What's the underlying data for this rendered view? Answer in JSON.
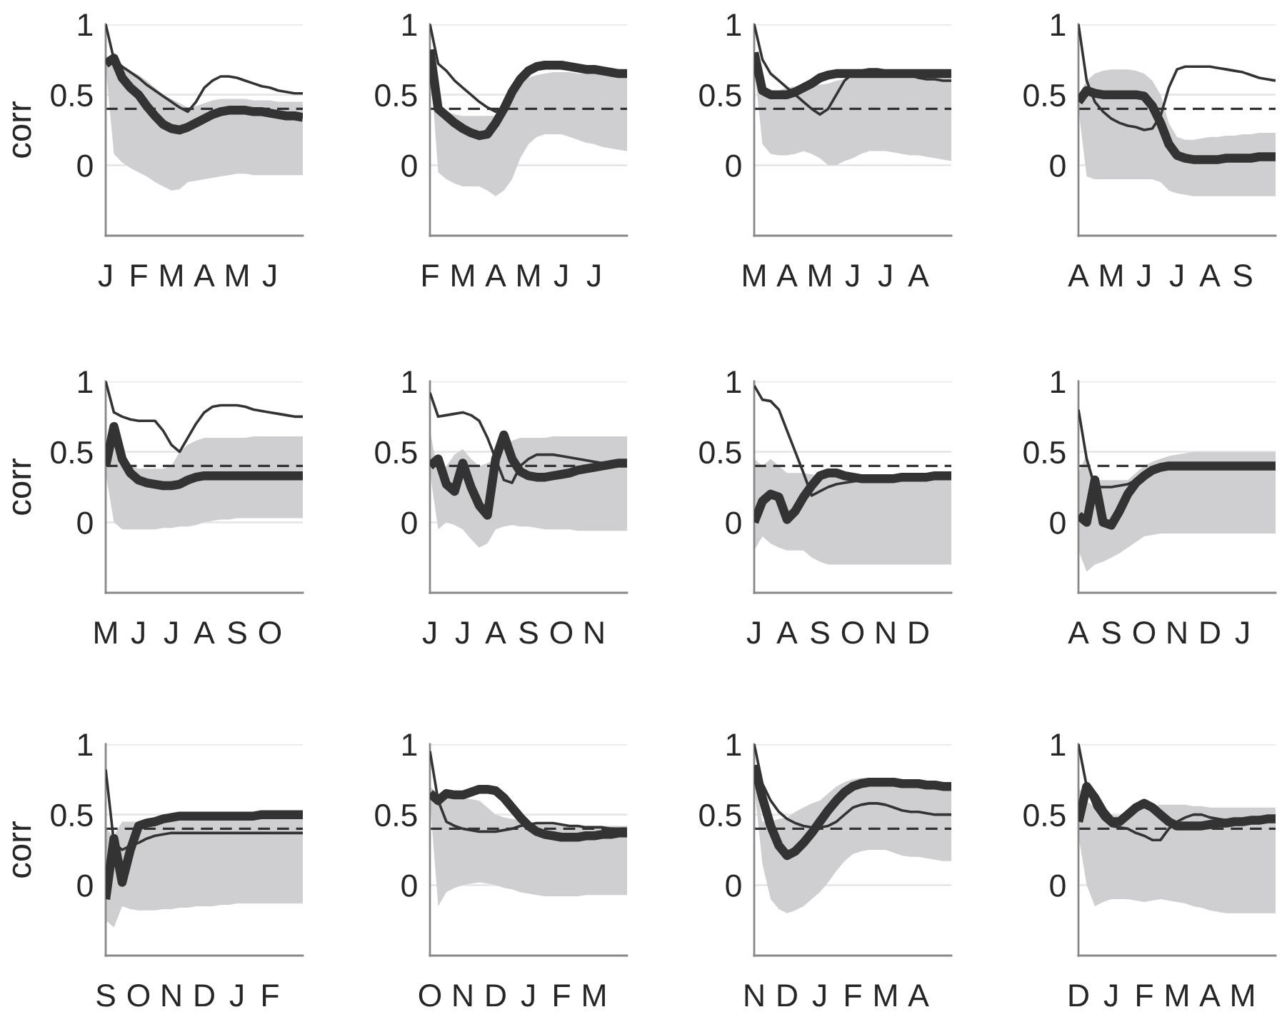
{
  "chart_data": [
    {
      "type": "line",
      "ylabel": "corr",
      "categories": [
        "J",
        null,
        null,
        null,
        "F",
        null,
        null,
        null,
        "M",
        null,
        null,
        null,
        "A",
        null,
        null,
        null,
        "M",
        null,
        null,
        null,
        "J",
        null,
        null,
        null,
        null
      ],
      "ylim": [
        -0.5,
        1
      ],
      "yticks": [
        0,
        0.5,
        1
      ],
      "grid": "y",
      "ref_lines": [
        {
          "axis": "y",
          "value": 0.4,
          "line_style": "dashed",
          "color": "#333333"
        }
      ],
      "series": [
        {
          "color": "#333333",
          "values": [
            0.72,
            0.76,
            0.62,
            0.55,
            0.5,
            0.42,
            0.35,
            0.29,
            0.26,
            0.25,
            0.27,
            0.3,
            0.33,
            0.36,
            0.38,
            0.39,
            0.39,
            0.39,
            0.38,
            0.38,
            0.37,
            0.36,
            0.35,
            0.35,
            0.34
          ],
          "lower": [
            0.7,
            0.08,
            0.02,
            -0.02,
            -0.05,
            -0.08,
            -0.12,
            -0.15,
            -0.18,
            -0.17,
            -0.12,
            -0.11,
            -0.1,
            -0.09,
            -0.08,
            -0.07,
            -0.06,
            -0.06,
            -0.07,
            -0.07,
            -0.07,
            -0.07,
            -0.07,
            -0.07,
            -0.07
          ],
          "upper": [
            0.78,
            0.75,
            0.7,
            0.67,
            0.64,
            0.6,
            0.55,
            0.5,
            0.47,
            0.44,
            0.41,
            0.42,
            0.44,
            0.46,
            0.47,
            0.47,
            0.47,
            0.47,
            0.46,
            0.46,
            0.46,
            0.45,
            0.45,
            0.45,
            0.45
          ]
        },
        {
          "color": "#333333",
          "values": [
            1,
            0.75,
            0.7,
            0.66,
            0.62,
            0.57,
            0.53,
            0.49,
            0.45,
            0.41,
            0.38,
            0.45,
            0.55,
            0.6,
            0.63,
            0.63,
            0.62,
            0.6,
            0.58,
            0.56,
            0.55,
            0.53,
            0.52,
            0.51,
            0.51
          ]
        }
      ]
    },
    {
      "type": "line",
      "categories": [
        "F",
        null,
        null,
        null,
        "M",
        null,
        null,
        null,
        "A",
        null,
        null,
        null,
        "M",
        null,
        null,
        null,
        "J",
        null,
        null,
        null,
        "J",
        null,
        null,
        null,
        null
      ],
      "ylim": [
        -0.5,
        1
      ],
      "yticks": [
        0,
        0.5,
        1
      ],
      "grid": "y",
      "ref_lines": [
        {
          "axis": "y",
          "value": 0.4,
          "line_style": "dashed",
          "color": "#333333"
        }
      ],
      "series": [
        {
          "color": "#333333",
          "values": [
            0.82,
            0.4,
            0.35,
            0.3,
            0.26,
            0.23,
            0.21,
            0.22,
            0.3,
            0.4,
            0.52,
            0.61,
            0.67,
            0.7,
            0.71,
            0.71,
            0.71,
            0.7,
            0.69,
            0.68,
            0.68,
            0.67,
            0.66,
            0.65,
            0.65
          ],
          "lower": [
            0.75,
            -0.05,
            -0.1,
            -0.13,
            -0.15,
            -0.15,
            -0.15,
            -0.18,
            -0.22,
            -0.18,
            -0.1,
            0.05,
            0.15,
            0.2,
            0.22,
            0.22,
            0.22,
            0.2,
            0.18,
            0.16,
            0.15,
            0.13,
            0.12,
            0.11,
            0.1
          ],
          "upper": [
            0.8,
            0.46,
            0.38,
            0.36,
            0.35,
            0.35,
            0.35,
            0.35,
            0.35,
            0.4,
            0.5,
            0.57,
            0.62,
            0.64,
            0.65,
            0.66,
            0.66,
            0.66,
            0.65,
            0.65,
            0.65,
            0.65,
            0.64,
            0.64,
            0.64
          ]
        },
        {
          "color": "#333333",
          "values": [
            1,
            0.72,
            0.67,
            0.6,
            0.55,
            0.5,
            0.45,
            0.41,
            0.38,
            0.4,
            0.52,
            0.61,
            0.67,
            0.7,
            0.71,
            0.71,
            0.71,
            0.7,
            0.69,
            0.68,
            0.68,
            0.67,
            0.66,
            0.65,
            0.65
          ]
        }
      ]
    },
    {
      "type": "line",
      "categories": [
        "M",
        null,
        null,
        null,
        "A",
        null,
        null,
        null,
        "M",
        null,
        null,
        null,
        "J",
        null,
        null,
        null,
        "J",
        null,
        null,
        null,
        "A",
        null,
        null,
        null,
        null
      ],
      "ylim": [
        -0.5,
        1
      ],
      "yticks": [
        0,
        0.5,
        1
      ],
      "grid": "y",
      "ref_lines": [
        {
          "axis": "y",
          "value": 0.4,
          "line_style": "dashed",
          "color": "#333333"
        }
      ],
      "series": [
        {
          "color": "#333333",
          "values": [
            0.8,
            0.53,
            0.5,
            0.5,
            0.5,
            0.52,
            0.55,
            0.58,
            0.62,
            0.64,
            0.65,
            0.65,
            0.65,
            0.65,
            0.65,
            0.65,
            0.65,
            0.65,
            0.65,
            0.65,
            0.65,
            0.65,
            0.65,
            0.65,
            0.65
          ],
          "lower": [
            0.7,
            0.15,
            0.08,
            0.07,
            0.07,
            0.08,
            0.1,
            0.08,
            0.05,
            0.0,
            0.0,
            0.03,
            0.05,
            0.08,
            0.1,
            0.1,
            0.1,
            0.09,
            0.08,
            0.07,
            0.07,
            0.06,
            0.05,
            0.04,
            0.03
          ],
          "upper": [
            0.8,
            0.53,
            0.52,
            0.53,
            0.55,
            0.56,
            0.57,
            0.57,
            0.57,
            0.58,
            0.6,
            0.61,
            0.62,
            0.63,
            0.64,
            0.65,
            0.65,
            0.65,
            0.65,
            0.65,
            0.65,
            0.65,
            0.65,
            0.65,
            0.65
          ]
        },
        {
          "color": "#333333",
          "values": [
            1,
            0.75,
            0.65,
            0.6,
            0.55,
            0.5,
            0.45,
            0.4,
            0.36,
            0.4,
            0.5,
            0.6,
            0.65,
            0.67,
            0.68,
            0.68,
            0.67,
            0.66,
            0.65,
            0.64,
            0.62,
            0.61,
            0.61,
            0.6,
            0.6
          ]
        }
      ]
    },
    {
      "type": "line",
      "categories": [
        "A",
        null,
        null,
        null,
        "M",
        null,
        null,
        null,
        "J",
        null,
        null,
        null,
        "J",
        null,
        null,
        null,
        "A",
        null,
        null,
        null,
        "S",
        null,
        null,
        null,
        null
      ],
      "ylim": [
        -0.5,
        1
      ],
      "yticks": [
        0,
        0.5,
        1
      ],
      "grid": "y",
      "ref_lines": [
        {
          "axis": "y",
          "value": 0.4,
          "line_style": "dashed",
          "color": "#333333"
        }
      ],
      "series": [
        {
          "color": "#333333",
          "values": [
            0.45,
            0.53,
            0.51,
            0.5,
            0.5,
            0.5,
            0.5,
            0.5,
            0.49,
            0.42,
            0.3,
            0.15,
            0.07,
            0.05,
            0.04,
            0.04,
            0.04,
            0.04,
            0.05,
            0.05,
            0.05,
            0.05,
            0.06,
            0.06,
            0.06
          ],
          "lower": [
            0.4,
            -0.08,
            -0.1,
            -0.1,
            -0.1,
            -0.1,
            -0.1,
            -0.1,
            -0.1,
            -0.1,
            -0.12,
            -0.18,
            -0.2,
            -0.21,
            -0.22,
            -0.22,
            -0.22,
            -0.22,
            -0.22,
            -0.22,
            -0.22,
            -0.22,
            -0.22,
            -0.22,
            -0.22
          ],
          "upper": [
            0.5,
            0.6,
            0.65,
            0.67,
            0.68,
            0.68,
            0.68,
            0.67,
            0.65,
            0.6,
            0.5,
            0.3,
            0.2,
            0.18,
            0.18,
            0.19,
            0.2,
            0.2,
            0.21,
            0.21,
            0.22,
            0.22,
            0.23,
            0.23,
            0.23
          ]
        },
        {
          "color": "#333333",
          "values": [
            1,
            0.6,
            0.45,
            0.38,
            0.33,
            0.3,
            0.28,
            0.27,
            0.25,
            0.26,
            0.35,
            0.55,
            0.68,
            0.7,
            0.7,
            0.7,
            0.7,
            0.69,
            0.68,
            0.67,
            0.66,
            0.64,
            0.62,
            0.61,
            0.6
          ]
        }
      ]
    },
    {
      "type": "line",
      "ylabel": "corr",
      "categories": [
        "M",
        null,
        null,
        null,
        "J",
        null,
        null,
        null,
        "J",
        null,
        null,
        null,
        "A",
        null,
        null,
        null,
        "S",
        null,
        null,
        null,
        "O",
        null,
        null,
        null,
        null
      ],
      "ylim": [
        -0.5,
        1
      ],
      "yticks": [
        0,
        0.5,
        1
      ],
      "grid": "y",
      "ref_lines": [
        {
          "axis": "y",
          "value": 0.4,
          "line_style": "dashed",
          "color": "#333333"
        }
      ],
      "series": [
        {
          "color": "#333333",
          "values": [
            0.4,
            0.68,
            0.45,
            0.35,
            0.3,
            0.28,
            0.27,
            0.26,
            0.26,
            0.27,
            0.3,
            0.32,
            0.33,
            0.33,
            0.33,
            0.33,
            0.33,
            0.33,
            0.33,
            0.33,
            0.33,
            0.33,
            0.33,
            0.33,
            0.33
          ],
          "lower": [
            0.35,
            0.0,
            -0.05,
            -0.05,
            -0.05,
            -0.05,
            -0.05,
            -0.04,
            -0.04,
            -0.03,
            -0.03,
            -0.02,
            0.0,
            0.01,
            0.02,
            0.02,
            0.03,
            0.03,
            0.03,
            0.03,
            0.03,
            0.03,
            0.03,
            0.03,
            0.03
          ],
          "upper": [
            0.45,
            0.55,
            0.42,
            0.4,
            0.38,
            0.38,
            0.38,
            0.38,
            0.4,
            0.5,
            0.55,
            0.58,
            0.6,
            0.6,
            0.6,
            0.6,
            0.6,
            0.6,
            0.61,
            0.61,
            0.61,
            0.61,
            0.61,
            0.61,
            0.61
          ]
        },
        {
          "color": "#333333",
          "values": [
            1,
            0.78,
            0.75,
            0.73,
            0.72,
            0.72,
            0.72,
            0.65,
            0.55,
            0.5,
            0.6,
            0.7,
            0.78,
            0.82,
            0.83,
            0.83,
            0.83,
            0.82,
            0.8,
            0.79,
            0.78,
            0.77,
            0.76,
            0.75,
            0.75
          ]
        }
      ]
    },
    {
      "type": "line",
      "categories": [
        "J",
        null,
        null,
        null,
        "J",
        null,
        null,
        null,
        "A",
        null,
        null,
        null,
        "S",
        null,
        null,
        null,
        "O",
        null,
        null,
        null,
        "N",
        null,
        null,
        null,
        null
      ],
      "ylim": [
        -0.5,
        1
      ],
      "yticks": [
        0,
        0.5,
        1
      ],
      "grid": "y",
      "ref_lines": [
        {
          "axis": "y",
          "value": 0.4,
          "line_style": "dashed",
          "color": "#333333"
        }
      ],
      "series": [
        {
          "color": "#333333",
          "values": [
            0.4,
            0.45,
            0.27,
            0.22,
            0.42,
            0.25,
            0.12,
            0.05,
            0.45,
            0.62,
            0.45,
            0.36,
            0.33,
            0.32,
            0.32,
            0.33,
            0.34,
            0.35,
            0.37,
            0.38,
            0.39,
            0.4,
            0.41,
            0.42,
            0.42
          ],
          "lower": [
            0.35,
            -0.05,
            0.0,
            -0.02,
            -0.05,
            -0.12,
            -0.18,
            -0.15,
            -0.05,
            -0.03,
            -0.02,
            -0.03,
            -0.03,
            -0.04,
            -0.05,
            -0.05,
            -0.05,
            -0.05,
            -0.06,
            -0.06,
            -0.06,
            -0.06,
            -0.06,
            -0.06,
            -0.06
          ],
          "upper": [
            0.65,
            0.35,
            0.4,
            0.48,
            0.52,
            0.45,
            0.4,
            0.42,
            0.45,
            0.55,
            0.58,
            0.6,
            0.6,
            0.6,
            0.6,
            0.61,
            0.61,
            0.61,
            0.61,
            0.61,
            0.61,
            0.61,
            0.61,
            0.61,
            0.61
          ]
        },
        {
          "color": "#333333",
          "values": [
            0.92,
            0.75,
            0.76,
            0.77,
            0.78,
            0.76,
            0.72,
            0.6,
            0.45,
            0.3,
            0.28,
            0.4,
            0.45,
            0.48,
            0.48,
            0.48,
            0.47,
            0.46,
            0.45,
            0.44,
            0.43,
            0.42,
            0.42,
            0.42,
            0.42
          ]
        }
      ]
    },
    {
      "type": "line",
      "categories": [
        "J",
        null,
        null,
        null,
        "A",
        null,
        null,
        null,
        "S",
        null,
        null,
        null,
        "O",
        null,
        null,
        null,
        "N",
        null,
        null,
        null,
        "D",
        null,
        null,
        null,
        null
      ],
      "ylim": [
        -0.5,
        1
      ],
      "yticks": [
        0,
        0.5,
        1
      ],
      "grid": "y",
      "ref_lines": [
        {
          "axis": "y",
          "value": 0.4,
          "line_style": "dashed",
          "color": "#333333"
        }
      ],
      "series": [
        {
          "color": "#333333",
          "values": [
            0.0,
            0.15,
            0.2,
            0.18,
            0.02,
            0.08,
            0.18,
            0.26,
            0.33,
            0.35,
            0.35,
            0.33,
            0.32,
            0.31,
            0.31,
            0.31,
            0.31,
            0.31,
            0.32,
            0.32,
            0.32,
            0.32,
            0.33,
            0.33,
            0.33
          ],
          "lower": [
            -0.2,
            -0.1,
            -0.15,
            -0.18,
            -0.2,
            -0.2,
            -0.2,
            -0.25,
            -0.28,
            -0.3,
            -0.3,
            -0.3,
            -0.3,
            -0.3,
            -0.3,
            -0.3,
            -0.3,
            -0.3,
            -0.3,
            -0.3,
            -0.3,
            -0.3,
            -0.3,
            -0.3,
            -0.3
          ],
          "upper": [
            0.45,
            0.4,
            0.45,
            0.4,
            0.35,
            0.35,
            0.35,
            0.34,
            0.33,
            0.32,
            0.32,
            0.31,
            0.31,
            0.31,
            0.31,
            0.31,
            0.32,
            0.32,
            0.32,
            0.32,
            0.33,
            0.33,
            0.33,
            0.33,
            0.33
          ]
        },
        {
          "color": "#333333",
          "values": [
            0.97,
            0.87,
            0.86,
            0.8,
            0.65,
            0.5,
            0.35,
            0.19,
            0.22,
            0.25,
            0.27,
            0.28,
            0.29,
            0.3,
            0.3,
            0.31,
            0.31,
            0.31,
            0.32,
            0.32,
            0.32,
            0.32,
            0.33,
            0.33,
            0.33
          ]
        }
      ]
    },
    {
      "type": "line",
      "categories": [
        "A",
        null,
        null,
        null,
        "S",
        null,
        null,
        null,
        "O",
        null,
        null,
        null,
        "N",
        null,
        null,
        null,
        "D",
        null,
        null,
        null,
        "J",
        null,
        null,
        null,
        null
      ],
      "ylim": [
        -0.5,
        1
      ],
      "yticks": [
        0,
        0.5,
        1
      ],
      "grid": "y",
      "ref_lines": [
        {
          "axis": "y",
          "value": 0.4,
          "line_style": "dashed",
          "color": "#333333"
        }
      ],
      "series": [
        {
          "color": "#333333",
          "values": [
            0.05,
            0.0,
            0.3,
            0.0,
            -0.02,
            0.08,
            0.2,
            0.28,
            0.33,
            0.37,
            0.39,
            0.4,
            0.4,
            0.4,
            0.4,
            0.4,
            0.4,
            0.4,
            0.4,
            0.4,
            0.4,
            0.4,
            0.4,
            0.4,
            0.4
          ],
          "lower": [
            -0.2,
            -0.35,
            -0.3,
            -0.28,
            -0.25,
            -0.22,
            -0.18,
            -0.14,
            -0.1,
            -0.09,
            -0.08,
            -0.08,
            -0.08,
            -0.08,
            -0.08,
            -0.08,
            -0.08,
            -0.08,
            -0.08,
            -0.08,
            -0.08,
            -0.08,
            -0.08,
            -0.08,
            -0.08
          ],
          "upper": [
            0.35,
            0.48,
            0.3,
            0.3,
            0.3,
            0.3,
            0.3,
            0.35,
            0.4,
            0.43,
            0.45,
            0.47,
            0.48,
            0.49,
            0.5,
            0.5,
            0.5,
            0.5,
            0.5,
            0.5,
            0.5,
            0.5,
            0.5,
            0.5,
            0.5
          ]
        },
        {
          "color": "#333333",
          "values": [
            0.8,
            0.45,
            0.25,
            0.25,
            0.25,
            0.26,
            0.27,
            0.3,
            0.33,
            0.37,
            0.39,
            0.4,
            0.4,
            0.4,
            0.4,
            0.4,
            0.4,
            0.4,
            0.4,
            0.4,
            0.4,
            0.4,
            0.4,
            0.4,
            0.4
          ]
        }
      ]
    },
    {
      "type": "line",
      "ylabel": "corr",
      "categories": [
        "S",
        null,
        null,
        null,
        "O",
        null,
        null,
        null,
        "N",
        null,
        null,
        null,
        "D",
        null,
        null,
        null,
        "J",
        null,
        null,
        null,
        "F",
        null,
        null,
        null,
        null
      ],
      "ylim": [
        -0.5,
        1
      ],
      "yticks": [
        0,
        0.5,
        1
      ],
      "grid": "y",
      "ref_lines": [
        {
          "axis": "y",
          "value": 0.4,
          "line_style": "dashed",
          "color": "#333333"
        }
      ],
      "series": [
        {
          "color": "#333333",
          "values": [
            -0.1,
            0.33,
            0.02,
            0.25,
            0.42,
            0.44,
            0.45,
            0.47,
            0.48,
            0.49,
            0.49,
            0.49,
            0.49,
            0.49,
            0.49,
            0.49,
            0.49,
            0.49,
            0.49,
            0.5,
            0.5,
            0.5,
            0.5,
            0.5,
            0.5
          ],
          "lower": [
            -0.25,
            -0.3,
            -0.15,
            -0.17,
            -0.18,
            -0.18,
            -0.18,
            -0.17,
            -0.17,
            -0.16,
            -0.16,
            -0.15,
            -0.15,
            -0.15,
            -0.14,
            -0.14,
            -0.13,
            -0.13,
            -0.13,
            -0.13,
            -0.13,
            -0.13,
            -0.13,
            -0.13,
            -0.13
          ],
          "upper": [
            0.4,
            0.35,
            0.45,
            0.45,
            0.45,
            0.46,
            0.47,
            0.47,
            0.47,
            0.47,
            0.47,
            0.47,
            0.47,
            0.47,
            0.47,
            0.47,
            0.47,
            0.47,
            0.47,
            0.47,
            0.47,
            0.47,
            0.47,
            0.47,
            0.47
          ]
        },
        {
          "color": "#333333",
          "values": [
            0.82,
            0.3,
            0.25,
            0.28,
            0.3,
            0.33,
            0.35,
            0.36,
            0.37,
            0.37,
            0.37,
            0.37,
            0.37,
            0.37,
            0.37,
            0.37,
            0.37,
            0.37,
            0.37,
            0.37,
            0.37,
            0.37,
            0.37,
            0.37,
            0.37
          ]
        }
      ]
    },
    {
      "type": "line",
      "categories": [
        "O",
        null,
        null,
        null,
        "N",
        null,
        null,
        null,
        "D",
        null,
        null,
        null,
        "J",
        null,
        null,
        null,
        "F",
        null,
        null,
        null,
        "M",
        null,
        null,
        null,
        null
      ],
      "ylim": [
        -0.5,
        1
      ],
      "yticks": [
        0,
        0.5,
        1
      ],
      "grid": "y",
      "ref_lines": [
        {
          "axis": "y",
          "value": 0.4,
          "line_style": "dashed",
          "color": "#333333"
        }
      ],
      "series": [
        {
          "color": "#333333",
          "values": [
            0.65,
            0.6,
            0.65,
            0.64,
            0.64,
            0.66,
            0.68,
            0.68,
            0.67,
            0.62,
            0.55,
            0.48,
            0.42,
            0.38,
            0.36,
            0.35,
            0.34,
            0.34,
            0.34,
            0.35,
            0.35,
            0.36,
            0.36,
            0.37,
            0.37
          ],
          "lower": [
            0.6,
            -0.15,
            -0.05,
            -0.02,
            0.0,
            0.01,
            0.02,
            0.01,
            0.0,
            -0.02,
            -0.03,
            -0.05,
            -0.06,
            -0.07,
            -0.08,
            -0.08,
            -0.08,
            -0.08,
            -0.08,
            -0.07,
            -0.07,
            -0.07,
            -0.07,
            -0.07,
            -0.07
          ],
          "upper": [
            0.7,
            0.65,
            0.66,
            0.64,
            0.62,
            0.61,
            0.6,
            0.55,
            0.5,
            0.48,
            0.47,
            0.46,
            0.45,
            0.44,
            0.43,
            0.43,
            0.42,
            0.42,
            0.42,
            0.42,
            0.42,
            0.42,
            0.42,
            0.42,
            0.42
          ]
        },
        {
          "color": "#333333",
          "values": [
            0.95,
            0.6,
            0.45,
            0.42,
            0.4,
            0.39,
            0.38,
            0.38,
            0.38,
            0.39,
            0.4,
            0.42,
            0.43,
            0.44,
            0.44,
            0.44,
            0.43,
            0.42,
            0.42,
            0.41,
            0.41,
            0.41,
            0.4,
            0.4,
            0.4
          ]
        }
      ]
    },
    {
      "type": "line",
      "categories": [
        "N",
        null,
        null,
        null,
        "D",
        null,
        null,
        null,
        "J",
        null,
        null,
        null,
        "F",
        null,
        null,
        null,
        "M",
        null,
        null,
        null,
        "A",
        null,
        null,
        null,
        null
      ],
      "ylim": [
        -0.5,
        1
      ],
      "yticks": [
        0,
        0.5,
        1
      ],
      "grid": "y",
      "ref_lines": [
        {
          "axis": "y",
          "value": 0.4,
          "line_style": "dashed",
          "color": "#333333"
        }
      ],
      "series": [
        {
          "color": "#333333",
          "values": [
            0.85,
            0.62,
            0.42,
            0.28,
            0.21,
            0.24,
            0.3,
            0.37,
            0.45,
            0.53,
            0.6,
            0.66,
            0.7,
            0.72,
            0.73,
            0.73,
            0.73,
            0.73,
            0.72,
            0.72,
            0.72,
            0.71,
            0.71,
            0.7,
            0.7
          ],
          "lower": [
            0.7,
            0.15,
            -0.1,
            -0.17,
            -0.2,
            -0.18,
            -0.15,
            -0.1,
            -0.05,
            0.02,
            0.1,
            0.17,
            0.22,
            0.24,
            0.25,
            0.25,
            0.25,
            0.23,
            0.21,
            0.2,
            0.2,
            0.19,
            0.18,
            0.17,
            0.17
          ],
          "upper": [
            0.8,
            0.45,
            0.45,
            0.47,
            0.48,
            0.52,
            0.55,
            0.58,
            0.6,
            0.65,
            0.7,
            0.73,
            0.75,
            0.76,
            0.76,
            0.76,
            0.75,
            0.74,
            0.73,
            0.72,
            0.72,
            0.71,
            0.71,
            0.7,
            0.7
          ]
        },
        {
          "color": "#333333",
          "values": [
            1,
            0.72,
            0.6,
            0.52,
            0.47,
            0.44,
            0.42,
            0.41,
            0.41,
            0.42,
            0.45,
            0.5,
            0.55,
            0.57,
            0.58,
            0.58,
            0.57,
            0.55,
            0.53,
            0.52,
            0.52,
            0.51,
            0.5,
            0.5,
            0.5
          ]
        }
      ]
    },
    {
      "type": "line",
      "categories": [
        "D",
        null,
        null,
        null,
        "J",
        null,
        null,
        null,
        "F",
        null,
        null,
        null,
        "M",
        null,
        null,
        null,
        "A",
        null,
        null,
        null,
        "M",
        null,
        null,
        null,
        null
      ],
      "ylim": [
        -0.5,
        1
      ],
      "yticks": [
        0,
        0.5,
        1
      ],
      "grid": "y",
      "ref_lines": [
        {
          "axis": "y",
          "value": 0.4,
          "line_style": "dashed",
          "color": "#333333"
        }
      ],
      "series": [
        {
          "color": "#333333",
          "values": [
            0.45,
            0.7,
            0.62,
            0.52,
            0.45,
            0.45,
            0.5,
            0.55,
            0.58,
            0.55,
            0.5,
            0.45,
            0.42,
            0.42,
            0.42,
            0.42,
            0.43,
            0.44,
            0.44,
            0.45,
            0.45,
            0.46,
            0.46,
            0.47,
            0.47
          ],
          "lower": [
            0.35,
            0.0,
            -0.15,
            -0.12,
            -0.1,
            -0.1,
            -0.1,
            -0.11,
            -0.12,
            -0.11,
            -0.1,
            -0.11,
            -0.12,
            -0.13,
            -0.15,
            -0.16,
            -0.18,
            -0.19,
            -0.2,
            -0.2,
            -0.2,
            -0.2,
            -0.2,
            -0.2,
            -0.2
          ],
          "upper": [
            0.7,
            0.6,
            0.55,
            0.52,
            0.5,
            0.49,
            0.48,
            0.52,
            0.55,
            0.56,
            0.57,
            0.57,
            0.57,
            0.57,
            0.56,
            0.56,
            0.55,
            0.55,
            0.55,
            0.55,
            0.55,
            0.55,
            0.55,
            0.55,
            0.55
          ]
        },
        {
          "color": "#333333",
          "values": [
            1,
            0.7,
            0.55,
            0.47,
            0.42,
            0.41,
            0.4,
            0.37,
            0.35,
            0.32,
            0.32,
            0.4,
            0.45,
            0.48,
            0.5,
            0.5,
            0.48,
            0.47,
            0.46,
            0.45,
            0.45,
            0.45,
            0.45,
            0.45,
            0.45
          ]
        }
      ]
    }
  ]
}
